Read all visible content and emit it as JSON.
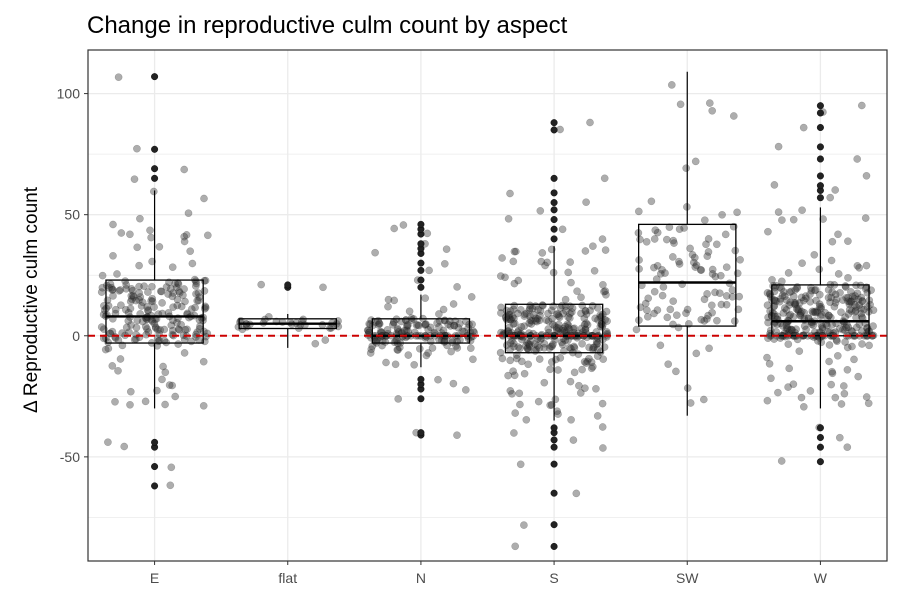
{
  "chart_data": {
    "type": "boxplot",
    "title": "Change in reproductive culm count by aspect",
    "xlabel": "",
    "ylabel": "Δ Reproductive culm count",
    "categories": [
      "E",
      "flat",
      "N",
      "S",
      "SW",
      "W"
    ],
    "y_ticks": [
      -50,
      0,
      50,
      100
    ],
    "ylim": [
      -93,
      118
    ],
    "grid": true,
    "reference_line": {
      "y": 0,
      "color": "#cc0000",
      "style": "dashed"
    },
    "boxes": [
      {
        "category": "E",
        "whisker_low": -30,
        "q1": -3,
        "median": 8,
        "q3": 23,
        "whisker_high": 60,
        "outliers": [
          -62,
          -54,
          -46,
          -44,
          65,
          69,
          77,
          107
        ]
      },
      {
        "category": "flat",
        "whisker_low": -5,
        "q1": 3,
        "median": 5,
        "q3": 7,
        "whisker_high": 9,
        "outliers": [
          20,
          21
        ]
      },
      {
        "category": "N",
        "whisker_low": -13,
        "q1": -3,
        "median": 0,
        "q3": 7,
        "whisker_high": 17,
        "outliers": [
          -41,
          -40,
          -26,
          -22,
          -20,
          -18,
          20,
          23,
          27,
          30,
          34,
          36,
          38,
          42,
          44,
          46
        ]
      },
      {
        "category": "S",
        "whisker_low": -35,
        "q1": -7,
        "median": 0,
        "q3": 13,
        "whisker_high": 37,
        "outliers": [
          -87,
          -78,
          -65,
          -53,
          -46,
          -43,
          -40,
          -38,
          40,
          44,
          48,
          52,
          55,
          59,
          65,
          85,
          88
        ]
      },
      {
        "category": "SW",
        "whisker_low": -33,
        "q1": 4,
        "median": 22,
        "q3": 46,
        "whisker_high": 109,
        "outliers": []
      },
      {
        "category": "W",
        "whisker_low": -30,
        "q1": 0,
        "median": 6,
        "q3": 21,
        "whisker_high": 53,
        "outliers": [
          -52,
          -46,
          -42,
          -38,
          57,
          60,
          62,
          66,
          73,
          78,
          86,
          92,
          95
        ]
      }
    ],
    "jitter_counts": {
      "E": 230,
      "flat": 30,
      "N": 170,
      "S": 330,
      "SW": 110,
      "W": 330
    },
    "colors": {
      "points": "#333333",
      "box": "#000000",
      "grid": "#ebebeb",
      "reference": "#cc0000"
    }
  }
}
